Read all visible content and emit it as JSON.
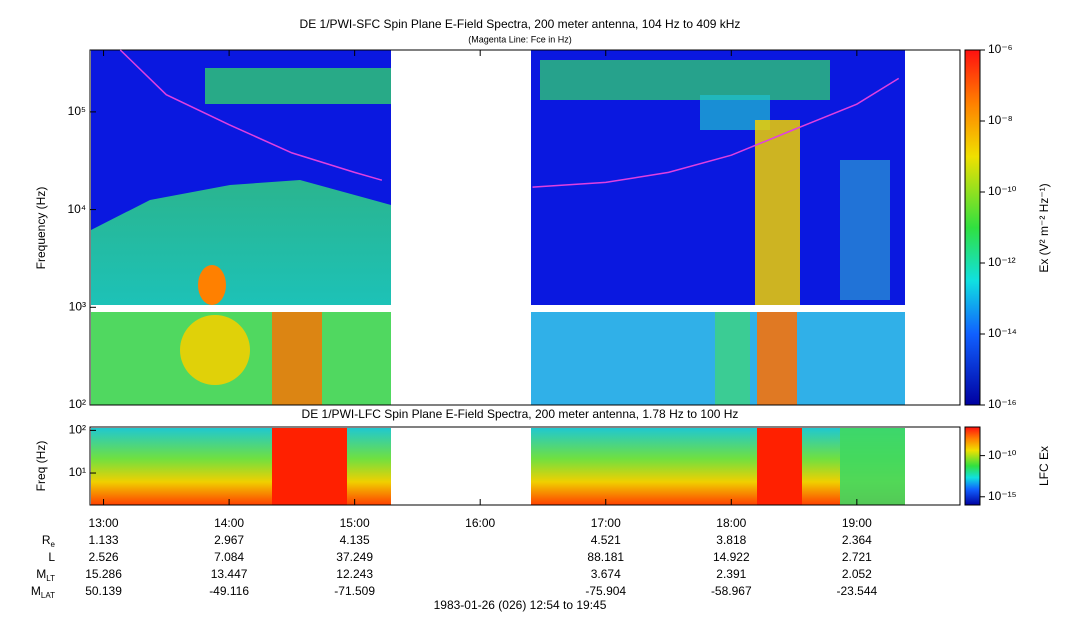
{
  "chart_data": [
    {
      "type": "spectrogram",
      "title": "DE 1/PWI-SFC  Spin Plane E-Field Spectra, 200 meter antenna, 104 Hz to 409 kHz",
      "subtitle": "(Magenta Line: Fce in Hz)",
      "ylabel": "Frequency (Hz)",
      "log_y": true,
      "xlim": [
        "12:54",
        "19:45"
      ],
      "ylim": [
        100,
        430000
      ],
      "yticks": [
        {
          "value": 100,
          "label": "10²"
        },
        {
          "value": 1000,
          "label": "10³"
        },
        {
          "value": 10000,
          "label": "10⁴"
        },
        {
          "value": 100000,
          "label": "10⁵"
        }
      ],
      "series": [
        {
          "color": "#e040e0",
          "x": [
            "13:08",
            "13:30",
            "14:00",
            "14:30",
            "15:00",
            "15:13",
            "15:50",
            "16:25",
            "17:00",
            "17:30",
            "18:00",
            "18:30",
            "19:00",
            "19:20"
          ],
          "values": [
            430000,
            150000,
            74000,
            38000,
            24000,
            20000,
            null,
            17000,
            19000,
            24000,
            36000,
            66000,
            120000,
            220000
          ]
        }
      ],
      "colorbar": {
        "label": "Ex (V² m⁻² Hz⁻¹)",
        "lim": [
          1e-16,
          1e-06
        ],
        "ticks": [
          {
            "value": 1e-06,
            "label": "10⁻⁶"
          },
          {
            "value": 1e-08,
            "label": "10⁻⁸"
          },
          {
            "value": 1e-10,
            "label": "10⁻¹⁰"
          },
          {
            "value": 1e-12,
            "label": "10⁻¹²"
          },
          {
            "value": 1e-14,
            "label": "10⁻¹⁴"
          },
          {
            "value": 1e-16,
            "label": "10⁻¹⁶"
          }
        ]
      }
    },
    {
      "type": "spectrogram",
      "title": "DE 1/PWI-LFC  Spin Plane E-Field Spectra, 200 meter antenna, 1.78 Hz to 100 Hz",
      "ylabel": "Freq (Hz)",
      "log_y": true,
      "xlim": [
        "12:54",
        "19:45"
      ],
      "xticks": [
        "13:00",
        "14:00",
        "15:00",
        "16:00",
        "17:00",
        "18:00",
        "19:00"
      ],
      "ylim": [
        1.78,
        120
      ],
      "yticks": [
        {
          "value": 10,
          "label": "10¹"
        },
        {
          "value": 100,
          "label": "10²"
        }
      ],
      "colorbar": {
        "label": "LFC Ex",
        "lim": [
          1e-16,
          3e-07
        ],
        "ticks": [
          {
            "value": 1e-10,
            "label": "10⁻¹⁰"
          },
          {
            "value": 1e-15,
            "label": "10⁻¹⁵"
          }
        ]
      }
    }
  ],
  "ephemeris": {
    "rows": [
      {
        "label": "R",
        "sub": "e",
        "values": [
          "1.133",
          "2.967",
          "4.135",
          null,
          "4.521",
          "3.818",
          "2.364"
        ]
      },
      {
        "label": "L",
        "sub": null,
        "values": [
          "2.526",
          "7.084",
          "37.249",
          null,
          "88.181",
          "14.922",
          "2.721"
        ]
      },
      {
        "label": "M",
        "sub": "LT",
        "values": [
          "15.286",
          "13.447",
          "12.243",
          null,
          "3.674",
          "2.391",
          "2.052"
        ]
      },
      {
        "label": "M",
        "sub": "LAT",
        "values": [
          "50.139",
          "-49.116",
          "-71.509",
          null,
          "-75.904",
          "-58.967",
          "-23.544"
        ]
      }
    ]
  },
  "footer": "1983-01-26 (026) 12:54 to 19:45"
}
